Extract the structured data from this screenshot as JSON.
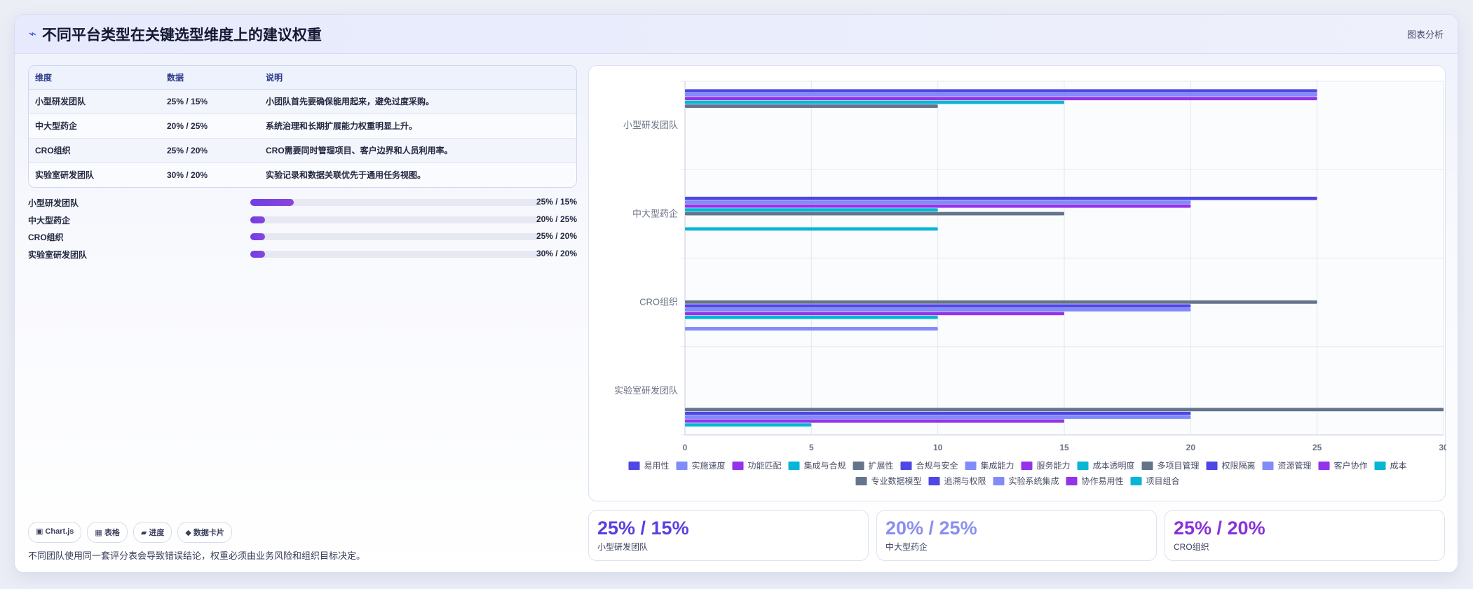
{
  "header": {
    "title": "不同平台类型在关键选型维度上的建议权重",
    "right_label": "图表分析"
  },
  "table": {
    "headers": [
      "维度",
      "数据",
      "说明"
    ],
    "rows": [
      {
        "name": "小型研发团队",
        "data": "25% / 15%",
        "desc": "小团队首先要确保能用起来，避免过度采购。"
      },
      {
        "name": "中大型药企",
        "data": "20% / 25%",
        "desc": "系统治理和长期扩展能力权重明显上升。"
      },
      {
        "name": "CRO组织",
        "data": "25% / 20%",
        "desc": "CRO需要同时管理项目、客户边界和人员利用率。"
      },
      {
        "name": "实验室研发团队",
        "data": "30% / 20%",
        "desc": "实验记录和数据关联优先于通用任务视图。"
      }
    ]
  },
  "progress": [
    {
      "label": "小型研发团队",
      "value_text": "25% / 15%",
      "fraction": 0.15
    },
    {
      "label": "中大型药企",
      "value_text": "20% / 25%",
      "fraction": 0.05
    },
    {
      "label": "CRO组织",
      "value_text": "25% / 20%",
      "fraction": 0.05
    },
    {
      "label": "实验室研发团队",
      "value_text": "30% / 20%",
      "fraction": 0.05
    }
  ],
  "tags": [
    "▣ Chart.js",
    "▦ 表格",
    "▰ 进度",
    "◆ 数据卡片"
  ],
  "note": "不同团队使用同一套评分表会导致错误结论，权重必须由业务风险和组织目标决定。",
  "cards": [
    {
      "value": "25% / 15%",
      "label": "小型研发团队",
      "color": "#5b3fe0"
    },
    {
      "value": "20% / 25%",
      "label": "中大型药企",
      "color": "#8b8ef0"
    },
    {
      "value": "25% / 20%",
      "label": "CRO组织",
      "color": "#8a32d8"
    }
  ],
  "chart_data": {
    "type": "bar",
    "orientation": "horizontal",
    "categories": [
      "小型研发团队",
      "中大型药企",
      "CRO组织",
      "实验室研发团队"
    ],
    "xlim": [
      0,
      30
    ],
    "xticks": [
      0,
      5,
      10,
      15,
      20,
      25,
      30
    ],
    "grid": true,
    "legend_position": "bottom",
    "series": [
      {
        "name": "易用性",
        "color": "#4f46e5",
        "values": [
          25,
          null,
          null,
          null
        ]
      },
      {
        "name": "实施速度",
        "color": "#818cf8",
        "values": [
          25,
          null,
          null,
          null
        ]
      },
      {
        "name": "功能匹配",
        "color": "#9333ea",
        "values": [
          25,
          null,
          null,
          null
        ]
      },
      {
        "name": "集成与合规",
        "color": "#06b6d4",
        "values": [
          15,
          null,
          null,
          null
        ]
      },
      {
        "name": "扩展性",
        "color": "#64748b",
        "values": [
          10,
          null,
          null,
          null
        ]
      },
      {
        "name": "合规与安全",
        "color": "#4f46e5",
        "values": [
          null,
          25,
          null,
          null
        ]
      },
      {
        "name": "集成能力",
        "color": "#818cf8",
        "values": [
          null,
          20,
          null,
          null
        ]
      },
      {
        "name": "服务能力",
        "color": "#9333ea",
        "values": [
          null,
          20,
          null,
          null
        ]
      },
      {
        "name": "成本透明度",
        "color": "#06b6d4",
        "values": [
          null,
          10,
          null,
          null
        ]
      },
      {
        "name": "多项目管理",
        "color": "#64748b",
        "values": [
          null,
          15,
          25,
          null
        ]
      },
      {
        "name": "权限隔离",
        "color": "#4f46e5",
        "values": [
          null,
          null,
          20,
          null
        ]
      },
      {
        "name": "资源管理",
        "color": "#818cf8",
        "values": [
          null,
          null,
          20,
          null
        ]
      },
      {
        "name": "客户协作",
        "color": "#9333ea",
        "values": [
          null,
          null,
          15,
          null
        ]
      },
      {
        "name": "成本",
        "color": "#06b6d4",
        "values": [
          null,
          10,
          10,
          null
        ]
      },
      {
        "name": "专业数据模型",
        "color": "#64748b",
        "values": [
          null,
          null,
          null,
          30
        ]
      },
      {
        "name": "追溯与权限",
        "color": "#4f46e5",
        "values": [
          null,
          null,
          null,
          20
        ]
      },
      {
        "name": "实验系统集成",
        "color": "#818cf8",
        "values": [
          null,
          null,
          10,
          20
        ]
      },
      {
        "name": "协作易用性",
        "color": "#9333ea",
        "values": [
          null,
          null,
          null,
          15
        ]
      },
      {
        "name": "项目组合",
        "color": "#06b6d4",
        "values": [
          null,
          null,
          null,
          5
        ]
      }
    ]
  }
}
